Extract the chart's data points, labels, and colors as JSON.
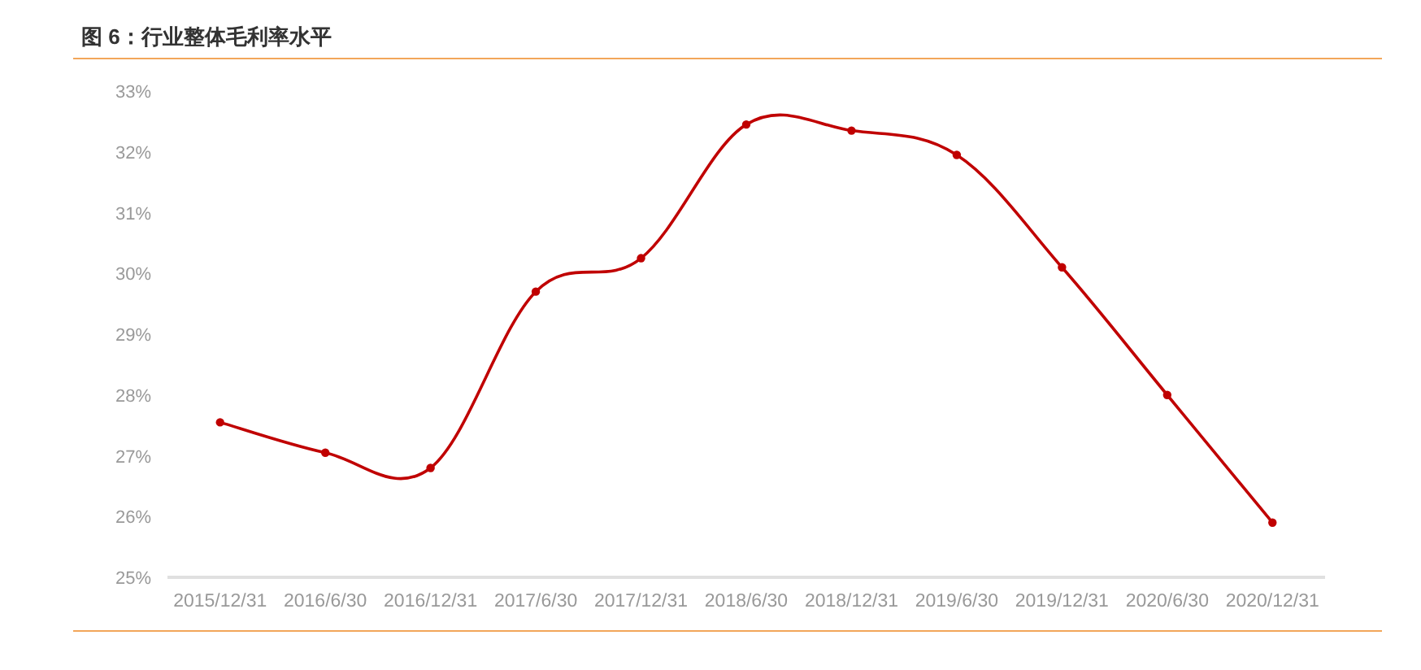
{
  "chart_data": {
    "type": "line",
    "title": "图 6：行业整体毛利率水平",
    "categories": [
      "2015/12/31",
      "2016/6/30",
      "2016/12/31",
      "2017/6/30",
      "2017/12/31",
      "2018/6/30",
      "2018/12/31",
      "2019/6/30",
      "2019/12/31",
      "2020/6/30",
      "2020/12/31"
    ],
    "series": [
      {
        "color": "#c00000",
        "values": [
          27.55,
          27.05,
          26.8,
          29.7,
          30.25,
          32.45,
          32.35,
          31.95,
          30.1,
          28.0,
          25.9
        ]
      }
    ],
    "ylim": [
      25,
      33
    ],
    "yticks": [
      {
        "value": 25,
        "label": "25%"
      },
      {
        "value": 26,
        "label": "26%"
      },
      {
        "value": 27,
        "label": "27%"
      },
      {
        "value": 28,
        "label": "28%"
      },
      {
        "value": 29,
        "label": "29%"
      },
      {
        "value": 30,
        "label": "30%"
      },
      {
        "value": 31,
        "label": "31%"
      },
      {
        "value": 32,
        "label": "32%"
      },
      {
        "value": 33,
        "label": "33%"
      }
    ],
    "grid": false,
    "marker": "circle",
    "line_style": "solid"
  }
}
